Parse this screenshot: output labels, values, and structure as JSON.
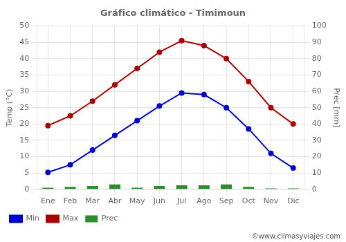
{
  "chart_data": {
    "type": "bar",
    "title": "Gráfico climático - Timimoun",
    "categories": [
      "Ene",
      "Feb",
      "Mar",
      "Abr",
      "May",
      "Jun",
      "Jul",
      "Ago",
      "Sep",
      "Oct",
      "Nov",
      "Dic"
    ],
    "series": [
      {
        "name": "Prec",
        "type": "bar",
        "axis": "y2",
        "color": "#2e8b2e",
        "values": [
          1.0,
          1.5,
          2.0,
          3.0,
          1.0,
          2.0,
          2.5,
          2.5,
          3.0,
          1.5,
          0.5,
          0.5
        ]
      },
      {
        "name": "Min",
        "type": "line",
        "color": "#0000cc",
        "marker": "circle",
        "line_style": "solid",
        "values": [
          5.2,
          7.5,
          12.0,
          16.5,
          21.0,
          25.5,
          29.5,
          29.0,
          25.0,
          18.5,
          11.0,
          6.5
        ]
      },
      {
        "name": "Max",
        "type": "line",
        "color": "#aa0000",
        "marker": "circle",
        "line_style": "solid",
        "values": [
          19.5,
          22.5,
          27.0,
          32.0,
          37.0,
          42.0,
          45.5,
          44.0,
          40.0,
          33.0,
          25.0,
          20.0
        ]
      }
    ],
    "ylabel": "Temp (°C)",
    "y2label": "Prec [mm]",
    "ylim": [
      0,
      50
    ],
    "yticks": [
      0,
      5,
      10,
      15,
      20,
      25,
      30,
      35,
      40,
      45,
      50
    ],
    "y2lim": [
      0,
      100
    ],
    "y2ticks": [
      0,
      10,
      20,
      30,
      40,
      50,
      60,
      70,
      80,
      90,
      100
    ],
    "grid": true,
    "legend": "bottom",
    "annotations": [
      "©www.climasyviajes.com"
    ]
  }
}
